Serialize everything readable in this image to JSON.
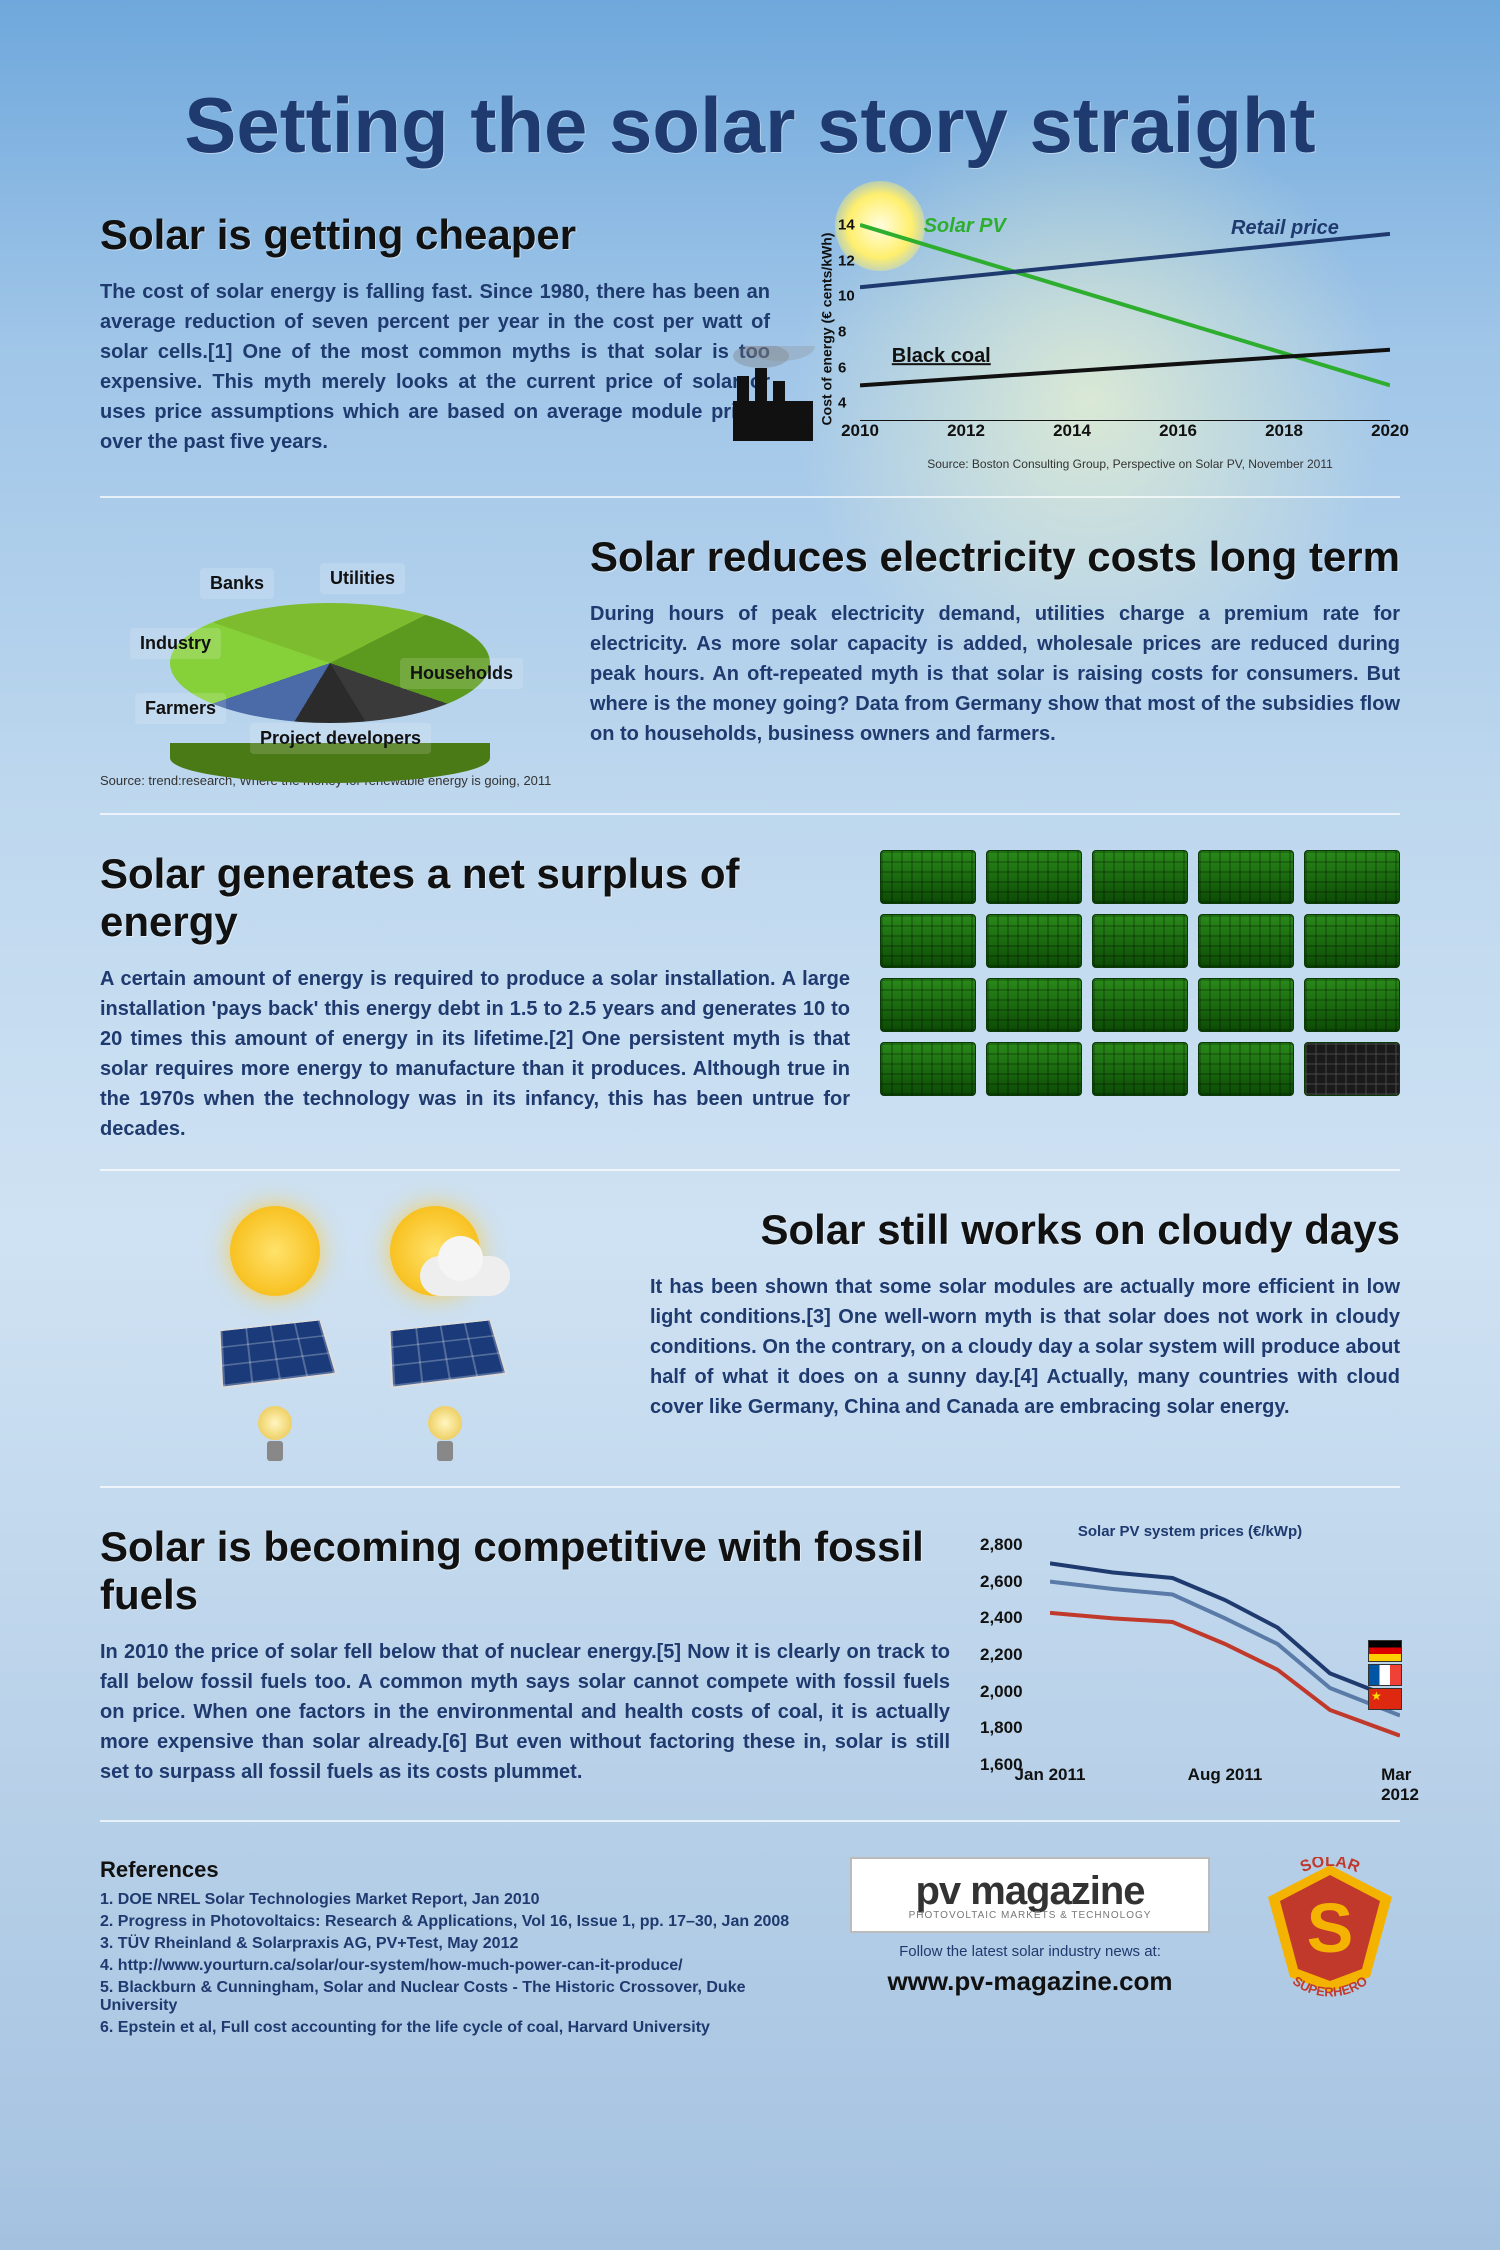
{
  "title": "Setting the solar story straight",
  "colors": {
    "title": "#1e3a6e",
    "heading": "#111111",
    "body": "#1e3a6e",
    "divider": "rgba(255,255,255,0.7)"
  },
  "section1": {
    "heading": "Solar is getting cheaper",
    "body": "The cost of solar energy is falling fast. Since 1980, there has been an average reduction of seven percent per year in the cost per watt of solar cells.[1] One of the most common myths is that solar is too expensive. This myth merely looks at the current price of solar or uses price assumptions which are based on average module prices over the past five years.",
    "chart": {
      "type": "line",
      "ylabel": "Cost of energy (€ cents/kWh)",
      "yticks": [
        4,
        6,
        8,
        10,
        12,
        14
      ],
      "ylim": [
        3,
        14.5
      ],
      "xticks": [
        2010,
        2012,
        2014,
        2016,
        2018,
        2020
      ],
      "xlim": [
        2010,
        2020
      ],
      "series": [
        {
          "name": "Solar PV",
          "label": "Solar PV",
          "color": "#2eae2e",
          "points": [
            [
              2010,
              14
            ],
            [
              2020,
              5
            ]
          ],
          "label_color": "#2eae2e"
        },
        {
          "name": "Retail price",
          "label": "Retail price",
          "color": "#1e3a6e",
          "points": [
            [
              2010,
              10.5
            ],
            [
              2020,
              13.5
            ]
          ],
          "label_color": "#1e3a6e"
        },
        {
          "name": "Black coal",
          "label": "Black coal",
          "color": "#111111",
          "points": [
            [
              2010,
              5
            ],
            [
              2020,
              7
            ]
          ],
          "label_color": "#111111"
        }
      ],
      "source": "Source: Boston Consulting Group, Perspective on Solar PV, November 2011"
    }
  },
  "section2": {
    "heading": "Solar reduces electricity costs long term",
    "body": "During hours of peak electricity demand, utilities charge a premium rate for electricity. As more solar capacity is added, wholesale prices are reduced during peak hours. An oft-repeated myth is that solar is raising costs for consumers. But where is the money going? Data from Germany show that most of the subsidies flow on to households, business owners and farmers.",
    "pie": {
      "type": "pie-3d",
      "slices": [
        {
          "label": "Households",
          "color": "#86d13a"
        },
        {
          "label": "Farmers",
          "color": "#7dbb2f"
        },
        {
          "label": "Project developers",
          "color": "#5c9a1f"
        },
        {
          "label": "Industry",
          "color": "#3a3a3a"
        },
        {
          "label": "Banks",
          "color": "#2b2b2b"
        },
        {
          "label": "Utilities",
          "color": "#4a6aa8"
        }
      ],
      "source": "Source: trend:research, Where the money for renewable energy is going, 2011"
    }
  },
  "section3": {
    "heading": "Solar generates a net surplus of energy",
    "body": "A certain amount of energy is required to produce a solar installation. A large installation 'pays back' this energy debt in 1.5 to 2.5 years and generates 10 to 20 times this amount of energy in its lifetime.[2] One persistent myth is that solar requires more energy to manufacture than it produces. Although true in the 1970s when the technology was in its infancy, this has been untrue for decades.",
    "panels": {
      "rows": 4,
      "cols": 5,
      "green_color": "#2a8a1a",
      "dark_index": 19
    }
  },
  "section4": {
    "heading": "Solar still works on cloudy days",
    "body": "It has been shown that some solar modules are actually more efficient in low light conditions.[3] One well-worn myth is that solar does not work in cloudy conditions. On the contrary, on a cloudy day a solar system will produce about half of what it does on a sunny day.[4] Actually, many countries with cloud cover like Germany, China and Canada are embracing solar energy."
  },
  "section5": {
    "heading": "Solar is becoming competitive with fossil fuels",
    "body": "In 2010 the price of solar fell below that of nuclear energy.[5] Now it is clearly on track to fall below fossil fuels too. A common myth says solar cannot compete with fossil fuels on price. When one factors in the environmental and health costs of coal, it is actually more expensive than solar already.[6] But even without factoring these in, solar is still set to surpass all fossil fuels as its costs plummet.",
    "chart": {
      "type": "line",
      "title": "Solar PV system prices (€/kWp)",
      "yticks": [
        1600,
        1800,
        2000,
        2200,
        2400,
        2600,
        2800
      ],
      "ylim": [
        1600,
        2800
      ],
      "xticks": [
        "Jan 2011",
        "Aug 2011",
        "Mar 2012"
      ],
      "series": [
        {
          "name": "Germany",
          "color": "#1e3a6e",
          "points": [
            [
              0,
              2700
            ],
            [
              0.18,
              2650
            ],
            [
              0.35,
              2620
            ],
            [
              0.5,
              2500
            ],
            [
              0.65,
              2350
            ],
            [
              0.8,
              2100
            ],
            [
              1,
              1950
            ]
          ]
        },
        {
          "name": "France",
          "color": "#5a7aa8",
          "points": [
            [
              0,
              2600
            ],
            [
              0.18,
              2560
            ],
            [
              0.35,
              2530
            ],
            [
              0.5,
              2400
            ],
            [
              0.65,
              2260
            ],
            [
              0.8,
              2020
            ],
            [
              1,
              1870
            ]
          ]
        },
        {
          "name": "China",
          "color": "#c0392b",
          "points": [
            [
              0,
              2430
            ],
            [
              0.18,
              2400
            ],
            [
              0.35,
              2380
            ],
            [
              0.5,
              2260
            ],
            [
              0.65,
              2120
            ],
            [
              0.8,
              1900
            ],
            [
              1,
              1760
            ]
          ]
        }
      ],
      "flags": [
        {
          "name": "germany",
          "bands": [
            "#000000",
            "#dd0000",
            "#ffce00"
          ]
        },
        {
          "name": "france",
          "bands": [
            "#0055a4",
            "#ffffff",
            "#ef4135"
          ],
          "vertical": true
        },
        {
          "name": "china",
          "bg": "#de2910"
        }
      ]
    }
  },
  "references": {
    "heading": "References",
    "items": [
      "1. DOE NREL Solar Technologies Market Report, Jan 2010",
      "2. Progress in Photovoltaics: Research & Applications, Vol 16, Issue 1, pp. 17–30, Jan 2008",
      "3. TÜV Rheinland & Solarpraxis AG, PV+Test, May 2012",
      "4. http://www.yourturn.ca/solar/our-system/how-much-power-can-it-produce/",
      "5. Blackburn & Cunningham, Solar and Nuclear Costs - The Historic Crossover, Duke University",
      "6. Epstein et al, Full cost accounting for the life cycle of coal, Harvard University"
    ]
  },
  "brand": {
    "name": "pv magazine",
    "tagline": "PHOTOVOLTAIC MARKETS & TECHNOLOGY",
    "follow": "Follow the latest solar industry news at:",
    "url": "www.pv-magazine.com",
    "badge_top": "SOLAR",
    "badge_letter": "S",
    "badge_bottom": "SUPERHERO",
    "badge_colors": {
      "outer": "#f5b301",
      "inner": "#c0392b",
      "text": "#f5b301"
    }
  }
}
